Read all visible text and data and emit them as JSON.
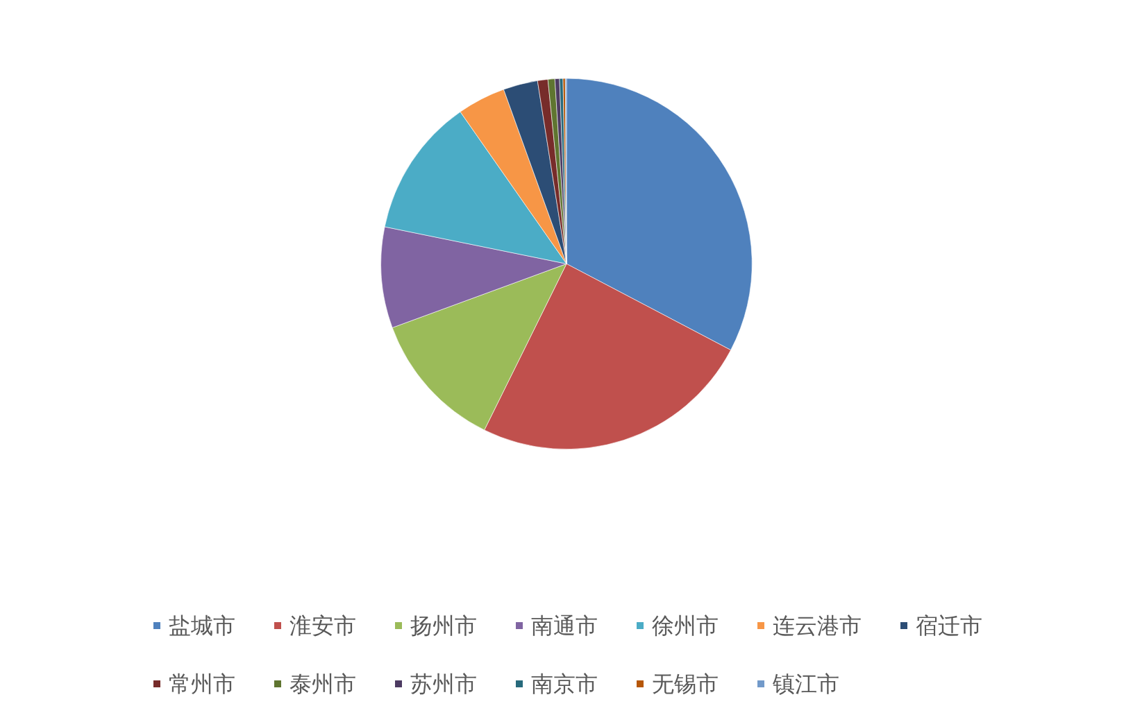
{
  "chart_data": {
    "type": "pie",
    "categories": [
      "盐城市",
      "淮安市",
      "扬州市",
      "南通市",
      "徐州市",
      "连云港市",
      "宿迁市",
      "常州市",
      "泰州市",
      "苏州市",
      "南京市",
      "无锡市",
      "镇江市"
    ],
    "values": [
      32.7,
      24.6,
      12.1,
      8.8,
      12.1,
      4.2,
      3.0,
      0.9,
      0.6,
      0.4,
      0.3,
      0.2,
      0.1
    ],
    "colors": [
      "#4f81bd",
      "#c0504d",
      "#9bbb59",
      "#8064a2",
      "#4bacc6",
      "#f79646",
      "#2c4d75",
      "#772c2a",
      "#5f7530",
      "#4d3b62",
      "#276a7c",
      "#b65708",
      "#729aca"
    ],
    "legend": "bottom"
  }
}
